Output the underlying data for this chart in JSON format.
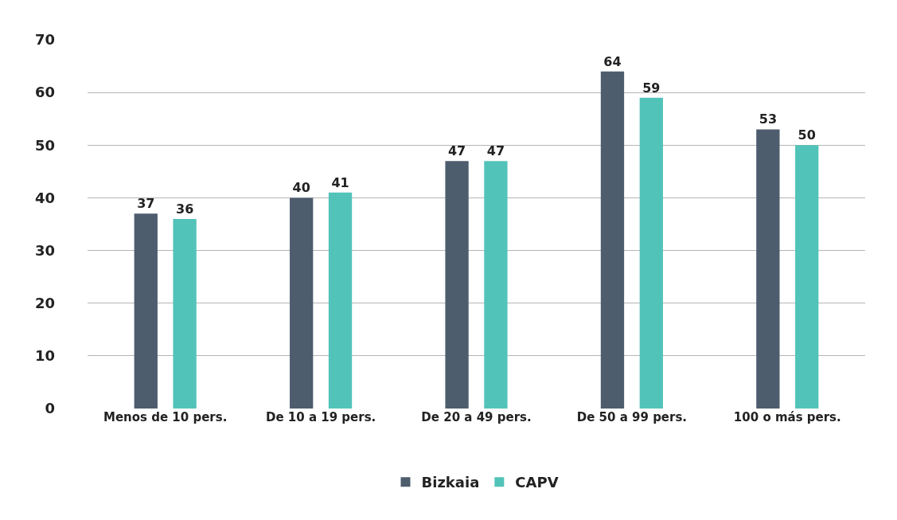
{
  "chart_data": {
    "type": "bar",
    "categories": [
      "Menos de 10 pers.",
      "De 10 a 19 pers.",
      "De 20 a 49 pers.",
      "De 50 a 99 pers.",
      "100 o más pers."
    ],
    "series": [
      {
        "name": "Bizkaia",
        "color": "#4d5d6d",
        "values": [
          37,
          40,
          47,
          64,
          53
        ]
      },
      {
        "name": "CAPV",
        "color": "#52c3b9",
        "values": [
          36,
          41,
          47,
          59,
          50
        ]
      }
    ],
    "ylim": [
      0,
      70
    ],
    "yticks": [
      0,
      10,
      20,
      30,
      40,
      50,
      60,
      70
    ],
    "grid": "y",
    "legend": "bottom",
    "data_labels": true
  }
}
